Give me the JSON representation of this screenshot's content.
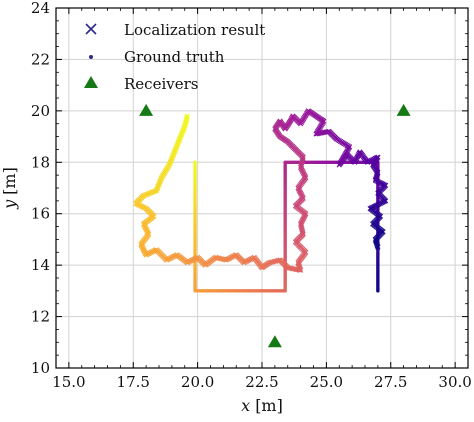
{
  "chart_data": {
    "type": "scatter",
    "xlabel_var": "x",
    "xlabel_unit": "[m]",
    "ylabel_var": "y",
    "ylabel_unit": "[m]",
    "xlim": [
      14.5,
      30.5
    ],
    "ylim": [
      10,
      24
    ],
    "xticks": [
      15.0,
      17.5,
      20.0,
      22.5,
      25.0,
      27.5,
      30.0
    ],
    "xtick_labels": [
      "15.0",
      "17.5",
      "20.0",
      "22.5",
      "25.0",
      "27.5",
      "30.0"
    ],
    "yticks": [
      10,
      12,
      14,
      16,
      18,
      20,
      22,
      24
    ],
    "ytick_labels": [
      "10",
      "12",
      "14",
      "16",
      "18",
      "20",
      "22",
      "24"
    ],
    "grid": true,
    "legend_position": "top-left",
    "legend": [
      {
        "label": "Localization result",
        "marker": "x",
        "color": "#2b2a8c"
      },
      {
        "label": "Ground truth",
        "marker": "dot",
        "color": "#2b2a8c"
      },
      {
        "label": "Receivers",
        "marker": "triangle",
        "color": "#157a15"
      }
    ],
    "colormap": [
      "#0d0887",
      "#5b02a3",
      "#9a179b",
      "#cb4678",
      "#eb7852",
      "#fbb32f",
      "#f0f921"
    ],
    "colormap_note": "plasma",
    "series": [
      {
        "name": "Receivers",
        "kind": "triangle",
        "color": "#157a15",
        "points": [
          [
            18.0,
            20.0
          ],
          [
            28.0,
            20.0
          ],
          [
            23.0,
            11.0
          ]
        ]
      },
      {
        "name": "Ground truth",
        "kind": "path",
        "points": [
          [
            27.0,
            13.0
          ],
          [
            27.0,
            18.0
          ],
          [
            23.4,
            18.0
          ],
          [
            23.4,
            13.0
          ],
          [
            19.9,
            13.0
          ],
          [
            19.9,
            18.0
          ]
        ]
      },
      {
        "name": "Localization result",
        "kind": "path-x",
        "points": [
          [
            27.0,
            14.7
          ],
          [
            26.9,
            15.0
          ],
          [
            27.2,
            15.3
          ],
          [
            26.8,
            15.6
          ],
          [
            27.1,
            15.9
          ],
          [
            26.7,
            16.2
          ],
          [
            27.3,
            16.5
          ],
          [
            27.0,
            16.8
          ],
          [
            27.3,
            17.1
          ],
          [
            26.9,
            17.3
          ],
          [
            27.0,
            17.6
          ],
          [
            26.8,
            17.9
          ],
          [
            27.0,
            18.2
          ],
          [
            26.6,
            18.0
          ],
          [
            26.3,
            18.4
          ],
          [
            26.1,
            18.0
          ],
          [
            25.8,
            18.3
          ],
          [
            25.5,
            17.9
          ],
          [
            25.9,
            18.6
          ],
          [
            25.4,
            18.9
          ],
          [
            25.1,
            19.2
          ],
          [
            24.6,
            19.1
          ],
          [
            24.9,
            19.6
          ],
          [
            24.6,
            19.8
          ],
          [
            24.3,
            20.0
          ],
          [
            24.0,
            19.5
          ],
          [
            23.7,
            19.8
          ],
          [
            23.6,
            19.6
          ],
          [
            23.4,
            19.3
          ],
          [
            23.2,
            19.6
          ],
          [
            23.0,
            19.3
          ],
          [
            23.2,
            19.0
          ],
          [
            23.5,
            18.8
          ],
          [
            23.8,
            18.5
          ],
          [
            24.1,
            18.2
          ],
          [
            24.0,
            17.8
          ],
          [
            24.2,
            17.4
          ],
          [
            23.9,
            17.0
          ],
          [
            24.1,
            16.6
          ],
          [
            23.8,
            16.3
          ],
          [
            24.2,
            16.0
          ],
          [
            24.0,
            15.6
          ],
          [
            24.1,
            15.2
          ],
          [
            23.8,
            14.9
          ],
          [
            24.2,
            14.5
          ],
          [
            23.9,
            14.1
          ],
          [
            24.0,
            13.8
          ],
          [
            23.5,
            13.9
          ],
          [
            23.2,
            14.2
          ],
          [
            22.8,
            14.1
          ],
          [
            22.5,
            13.9
          ],
          [
            22.2,
            14.3
          ],
          [
            21.8,
            14.1
          ],
          [
            21.5,
            14.4
          ],
          [
            21.1,
            14.2
          ],
          [
            20.7,
            14.3
          ],
          [
            20.3,
            14.0
          ],
          [
            20.0,
            14.3
          ],
          [
            19.6,
            14.1
          ],
          [
            19.2,
            14.4
          ],
          [
            18.8,
            14.2
          ],
          [
            18.4,
            14.6
          ],
          [
            18.0,
            14.4
          ],
          [
            17.8,
            14.8
          ],
          [
            18.1,
            15.2
          ],
          [
            17.9,
            15.6
          ],
          [
            18.3,
            15.9
          ],
          [
            18.0,
            16.2
          ],
          [
            17.6,
            16.4
          ],
          [
            17.9,
            16.7
          ],
          [
            18.4,
            16.9
          ],
          [
            18.6,
            17.4
          ],
          [
            18.9,
            17.9
          ],
          [
            19.1,
            18.4
          ],
          [
            19.3,
            18.9
          ],
          [
            19.5,
            19.4
          ],
          [
            19.6,
            19.8
          ]
        ]
      }
    ]
  }
}
